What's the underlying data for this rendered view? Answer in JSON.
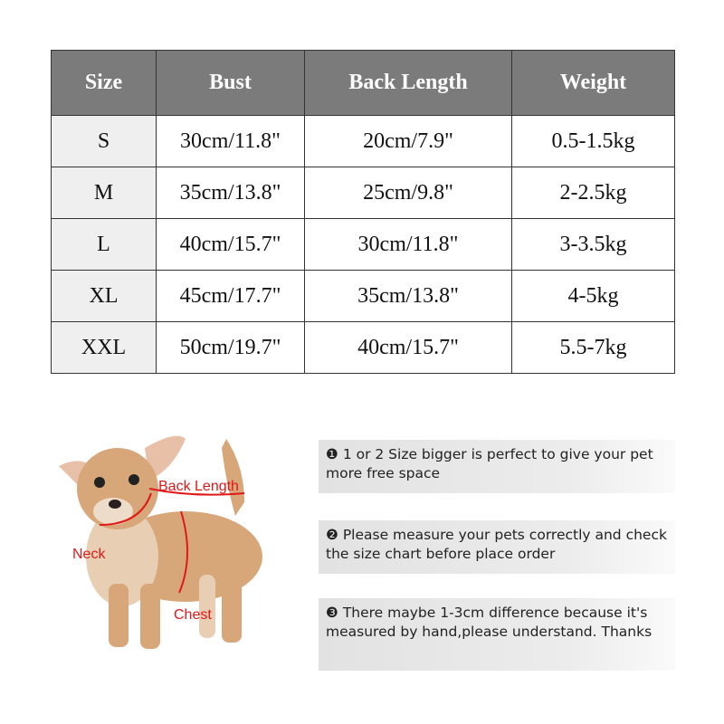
{
  "table": {
    "headers": [
      "Size",
      "Bust",
      "Back Length",
      "Weight"
    ],
    "rows": [
      [
        "S",
        "30cm/11.8\"",
        "20cm/7.9\"",
        "0.5-1.5kg"
      ],
      [
        "M",
        "35cm/13.8\"",
        "25cm/9.8\"",
        "2-2.5kg"
      ],
      [
        "L",
        "40cm/15.7\"",
        "30cm/11.8\"",
        "3-3.5kg"
      ],
      [
        "XL",
        "45cm/17.7\"",
        "35cm/13.8\"",
        "4-5kg"
      ],
      [
        "XXL",
        "50cm/19.7\"",
        "40cm/15.7\"",
        "5.5-7kg"
      ]
    ]
  },
  "diagram": {
    "labels": {
      "back": "Back Length",
      "neck": "Neck",
      "chest": "Chest"
    },
    "label_color": "#e01818"
  },
  "notes": [
    "❶ 1 or 2 Size bigger is perfect to give your pet more free space",
    "❷ Please measure your pets correctly and check the size chart before place order",
    "❸ There maybe 1-3cm difference because it's measured by hand,please understand. Thanks"
  ]
}
